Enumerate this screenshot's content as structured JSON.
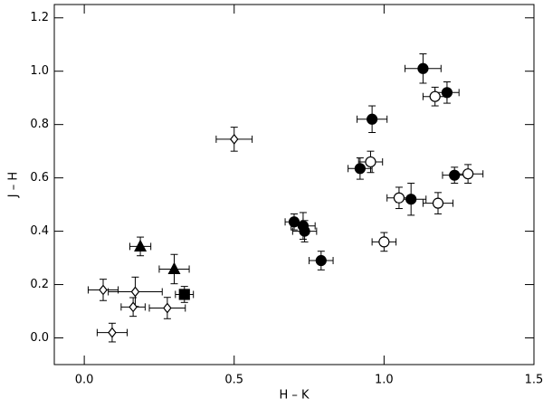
{
  "chart_data": {
    "type": "scatter",
    "xlabel": "H – K",
    "ylabel": "J – H",
    "xlim": [
      -0.1,
      1.5
    ],
    "ylim": [
      -0.1,
      1.25
    ],
    "xticks": [
      {
        "value": 0,
        "label": "0.0"
      },
      0.5,
      {
        "value": 1,
        "label": "1.0"
      },
      1.5
    ],
    "yticks": [
      {
        "value": 0,
        "label": "0.0"
      },
      0.2,
      0.4,
      0.6,
      0.8,
      {
        "value": 1,
        "label": "1.0"
      },
      1.2
    ],
    "color": "#000000",
    "series": [
      {
        "marker": "circle",
        "filled": true,
        "x": [
          1.13,
          1.21,
          0.96,
          0.92,
          1.09,
          0.7,
          0.73,
          0.735,
          0.79,
          1.235
        ],
        "y": [
          1.01,
          0.92,
          0.82,
          0.635,
          0.52,
          0.435,
          0.42,
          0.4,
          0.29,
          0.61
        ],
        "xerr": [
          0.06,
          0.04,
          0.05,
          0.04,
          0.05,
          0.03,
          0.04,
          0.04,
          0.04,
          0.04
        ],
        "yerr": [
          0.055,
          0.04,
          0.05,
          0.04,
          0.06,
          0.03,
          0.05,
          0.04,
          0.035,
          0.03
        ]
      },
      {
        "marker": "circle",
        "filled": false,
        "x": [
          1.17,
          0.955,
          1.05,
          1.28,
          1.18,
          1.0
        ],
        "y": [
          0.905,
          0.66,
          0.525,
          0.615,
          0.505,
          0.36
        ],
        "xerr": [
          0.04,
          0.04,
          0.04,
          0.05,
          0.05,
          0.04
        ],
        "yerr": [
          0.035,
          0.04,
          0.04,
          0.035,
          0.04,
          0.035
        ]
      },
      {
        "marker": "diamond",
        "filled": false,
        "x": [
          0.5,
          0.063,
          0.17,
          0.163,
          0.277,
          0.093
        ],
        "y": [
          0.745,
          0.18,
          0.173,
          0.116,
          0.112,
          0.02
        ],
        "xerr": [
          0.06,
          0.05,
          0.09,
          0.04,
          0.06,
          0.05
        ],
        "yerr": [
          0.045,
          0.04,
          0.055,
          0.035,
          0.04,
          0.035
        ]
      },
      {
        "marker": "triangle",
        "filled": true,
        "x": [
          0.187,
          0.3
        ],
        "y": [
          0.343,
          0.258
        ],
        "xerr": [
          0.035,
          0.05
        ],
        "yerr": [
          0.035,
          0.055
        ]
      },
      {
        "marker": "square",
        "filled": true,
        "x": [
          0.334
        ],
        "y": [
          0.163
        ],
        "xerr": [
          0.03
        ],
        "yerr": [
          0.03
        ]
      }
    ]
  }
}
